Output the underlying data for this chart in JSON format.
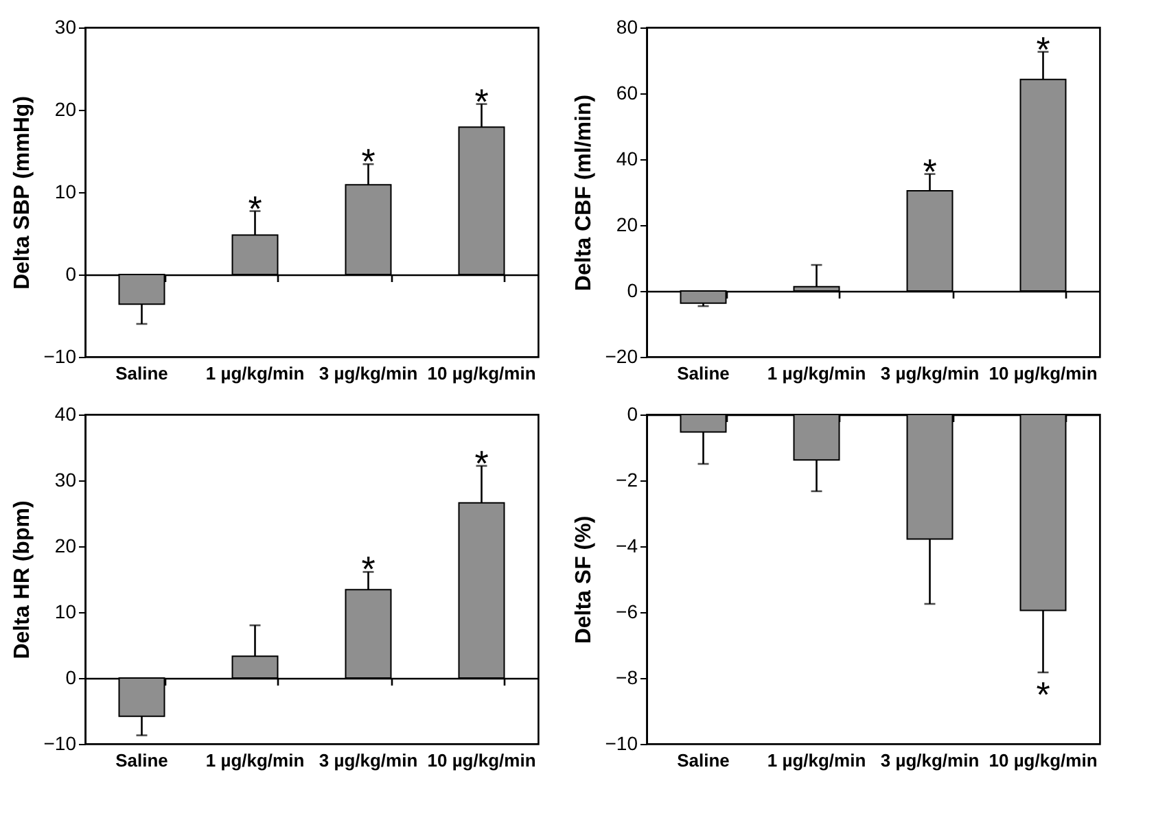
{
  "chart_data": [
    {
      "type": "bar",
      "ylabel": "Delta SBP (mmHg)",
      "categories": [
        "Saline",
        "1 µg/kg/min",
        "3 µg/kg/min",
        "10 µg/kg/min"
      ],
      "values": [
        -3.6,
        4.8,
        10.9,
        17.9
      ],
      "errors": [
        [
          -6.0,
          -3.6
        ],
        [
          4.8,
          7.7
        ],
        [
          10.9,
          13.4
        ],
        [
          17.9,
          20.7
        ]
      ],
      "color": "#8f8f8f",
      "ylim": [
        -10,
        30
      ],
      "yticks": [
        -10,
        0,
        10,
        20,
        30
      ],
      "annotations": [
        {
          "text": "*",
          "x": "1 µg/kg/min",
          "y": 7.7
        },
        {
          "text": "*",
          "x": "3 µg/kg/min",
          "y": 13.4
        },
        {
          "text": "*",
          "x": "10 µg/kg/min",
          "y": 20.7
        }
      ]
    },
    {
      "type": "bar",
      "ylabel": "Delta CBF (ml/min)",
      "categories": [
        "Saline",
        "1 µg/kg/min",
        "3 µg/kg/min",
        "10 µg/kg/min"
      ],
      "values": [
        -3.7,
        1.3,
        30.4,
        64.2
      ],
      "errors": [
        [
          -4.6,
          -3.7
        ],
        [
          1.3,
          7.9
        ],
        [
          30.4,
          35.5
        ],
        [
          64.2,
          72.6
        ]
      ],
      "color": "#8f8f8f",
      "ylim": [
        -20,
        80
      ],
      "yticks": [
        -20,
        0,
        20,
        40,
        60,
        80
      ],
      "annotations": [
        {
          "text": "*",
          "x": "3 µg/kg/min",
          "y": 35.5
        },
        {
          "text": "*",
          "x": "10 µg/kg/min",
          "y": 72.6
        }
      ]
    },
    {
      "type": "bar",
      "ylabel": "Delta HR (bpm)",
      "categories": [
        "Saline",
        "1 µg/kg/min",
        "3 µg/kg/min",
        "10 µg/kg/min"
      ],
      "values": [
        -5.8,
        3.3,
        13.4,
        26.6
      ],
      "errors": [
        [
          -8.7,
          -5.8
        ],
        [
          3.3,
          8.0
        ],
        [
          13.4,
          16.1
        ],
        [
          26.6,
          32.2
        ]
      ],
      "color": "#8f8f8f",
      "ylim": [
        -10,
        40
      ],
      "yticks": [
        -10,
        0,
        10,
        20,
        30,
        40
      ],
      "annotations": [
        {
          "text": "*",
          "x": "3 µg/kg/min",
          "y": 16.1
        },
        {
          "text": "*",
          "x": "10 µg/kg/min",
          "y": 32.2
        }
      ]
    },
    {
      "type": "bar",
      "ylabel": "Delta SF (%)",
      "categories": [
        "Saline",
        "1 µg/kg/min",
        "3 µg/kg/min",
        "10 µg/kg/min"
      ],
      "values": [
        -0.53,
        -1.38,
        -3.78,
        -5.95
      ],
      "errors": [
        [
          -1.5,
          -0.53
        ],
        [
          -2.33,
          -1.38
        ],
        [
          -5.75,
          -3.78
        ],
        [
          -7.83,
          -5.95
        ]
      ],
      "color": "#8f8f8f",
      "ylim": [
        -10,
        0
      ],
      "yticks": [
        -10,
        -8,
        -6,
        -4,
        -2,
        0
      ],
      "annotations": [
        {
          "text": "*",
          "x": "10 µg/kg/min",
          "y": -7.83
        }
      ]
    }
  ]
}
